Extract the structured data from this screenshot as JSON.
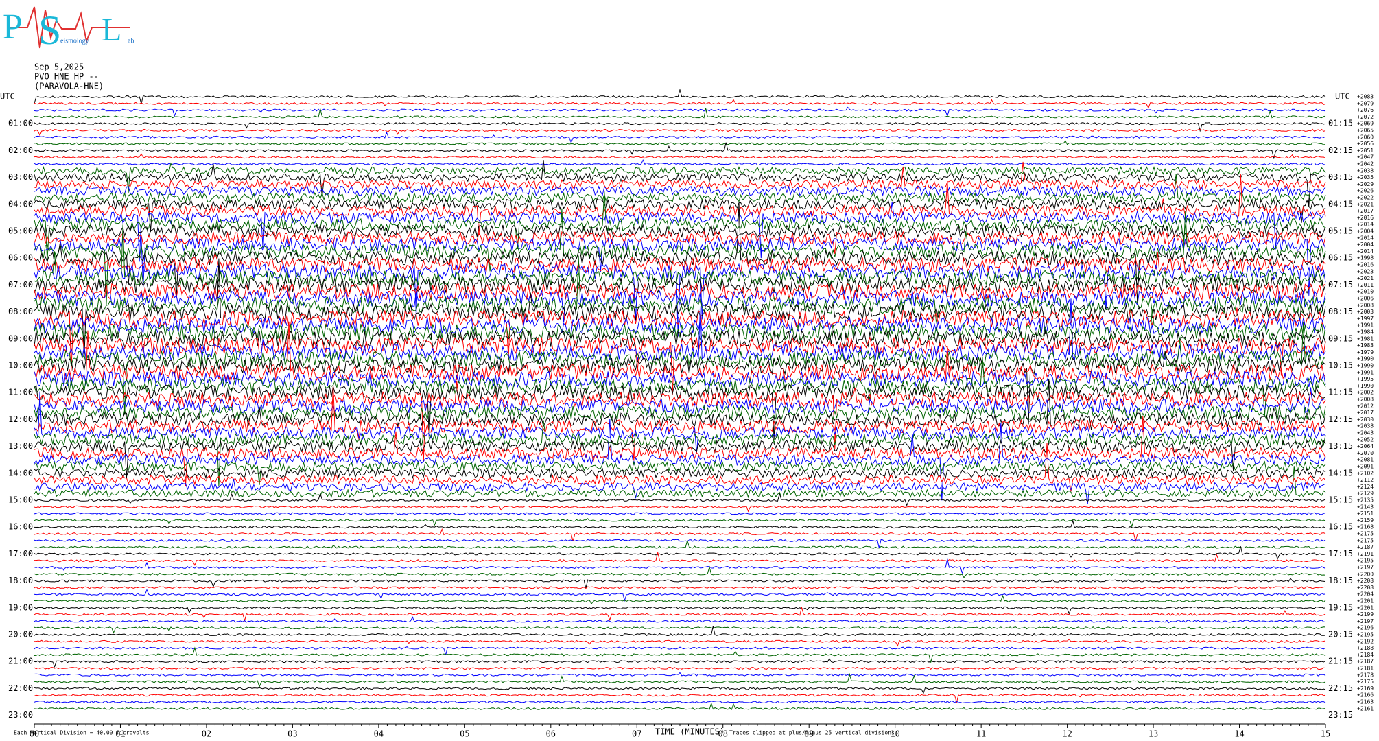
{
  "logo": {
    "letters": [
      "P",
      "S",
      "L"
    ],
    "words": [
      "eismology",
      "ab"
    ]
  },
  "chart_data": {
    "type": "helicorder",
    "title_lines": [
      "Sep 5,2025",
      "PVO HNE HP --",
      "(PARAVOLA-HNE)"
    ],
    "left_axis_title": "UTC",
    "right_axis_title": "UTC",
    "left_labels": [
      "01:00",
      "02:00",
      "03:00",
      "04:00",
      "05:00",
      "06:00",
      "07:00",
      "08:00",
      "09:00",
      "10:00",
      "11:00",
      "12:00",
      "13:00",
      "14:00",
      "15:00",
      "16:00",
      "17:00",
      "18:00",
      "19:00",
      "20:00",
      "21:00",
      "22:00",
      "23:00"
    ],
    "right_labels": [
      "01:15",
      "02:15",
      "03:15",
      "04:15",
      "05:15",
      "06:15",
      "07:15",
      "08:15",
      "09:15",
      "10:15",
      "11:15",
      "12:15",
      "13:15",
      "14:15",
      "15:15",
      "16:15",
      "17:15",
      "18:15",
      "19:15",
      "20:15",
      "21:15",
      "22:15",
      "23:15"
    ],
    "trace_offsets": [
      "+2083",
      "+2079",
      "+2076",
      "+2072",
      "+2069",
      "+2065",
      "+2060",
      "+2056",
      "+2051",
      "+2047",
      "+2042",
      "+2038",
      "+2035",
      "+2029",
      "+2026",
      "+2022",
      "+2021",
      "+2017",
      "+2016",
      "+2014",
      "+2004",
      "+2014",
      "+2004",
      "+2014",
      "+1998",
      "+2016",
      "+2023",
      "+2021",
      "+2011",
      "+2010",
      "+2006",
      "+2008",
      "+2003",
      "+1997",
      "+1991",
      "+1984",
      "+1981",
      "+1983",
      "+1979",
      "+1990",
      "+1990",
      "+1991",
      "+1995",
      "+1990",
      "+2002",
      "+2008",
      "+2012",
      "+2017",
      "+2030",
      "+2038",
      "+2043",
      "+2052",
      "+2064",
      "+2070",
      "+2081",
      "+2091",
      "+2102",
      "+2112",
      "+2124",
      "+2129",
      "+2135",
      "+2143",
      "+2151",
      "+2159",
      "+2168",
      "+2175",
      "+2175",
      "+2187",
      "+2191",
      "+2195",
      "+2197",
      "+2200",
      "+2208",
      "+2208",
      "+2204",
      "+2201",
      "+2201",
      "+2199",
      "+2197",
      "+2196",
      "+2195",
      "+2192",
      "+2188",
      "+2184",
      "+2187",
      "+2181",
      "+2178",
      "+2175",
      "+2169",
      "+2166",
      "+2163",
      "+2161"
    ],
    "trace_colors": [
      "#000000",
      "#ff0000",
      "#0000ff",
      "#006400"
    ],
    "xlim": [
      0,
      15
    ],
    "xticks": [
      {
        "value": 0,
        "label": "00"
      },
      {
        "value": 1,
        "label": "01"
      },
      {
        "value": 2,
        "label": "02"
      },
      {
        "value": 3,
        "label": "03"
      },
      {
        "value": 4,
        "label": "04"
      },
      {
        "value": 5,
        "label": "05"
      },
      {
        "value": 6,
        "label": "06"
      },
      {
        "value": 7,
        "label": "07"
      },
      {
        "value": 8,
        "label": "08"
      },
      {
        "value": 9,
        "label": "09"
      },
      {
        "value": 10,
        "label": "10"
      },
      {
        "value": 11,
        "label": "11"
      },
      {
        "value": 12,
        "label": "12"
      },
      {
        "value": 13,
        "label": "13"
      },
      {
        "value": 14,
        "label": "14"
      },
      15
    ],
    "xlabel": "TIME (MINUTES)",
    "clip_note": "Traces clipped at plus/minus 25 vertical divisions",
    "scale_note": "Each Vertical Division =   40.00 microvolts"
  }
}
